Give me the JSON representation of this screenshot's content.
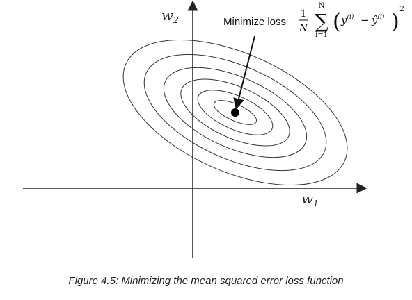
{
  "axes": {
    "x_label_main": "w",
    "x_label_sub": "1",
    "y_label_main": "w",
    "y_label_sub": "2"
  },
  "annotation": {
    "label": "Minimize loss"
  },
  "formula": {
    "frac_num": "1",
    "frac_den": "N",
    "sum_symbol": "∑",
    "sum_upper": "N",
    "sum_lower": "i=1",
    "paren_open": "(",
    "y_term": "y",
    "y_sup": "(i)",
    "minus": "−",
    "yhat_term": "ŷ",
    "yhat_sup": "(i)",
    "paren_close": ")",
    "power": "2"
  },
  "contours": {
    "count": 6
  },
  "caption": "Figure 4.5: Minimizing the mean squared error loss function"
}
